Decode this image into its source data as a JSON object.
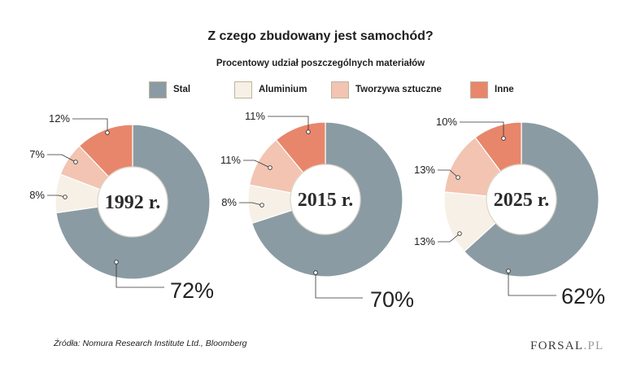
{
  "chart_data": {
    "type": "pie",
    "title": "Z czego zbudowany jest samochód?",
    "subtitle": "Procentowy udział poszczególnych materiałów",
    "categories": [
      "Stal",
      "Aluminium",
      "Tworzywa sztuczne",
      "Inne"
    ],
    "colors": [
      "#8A9BA3",
      "#F6F0E6",
      "#F2C4B1",
      "#E8866B"
    ],
    "legend": "top",
    "series": [
      {
        "name": "1992 r.",
        "values": [
          72,
          8,
          7,
          12
        ],
        "labels": [
          "72%",
          "8%",
          "7%",
          "12%"
        ]
      },
      {
        "name": "2015 r.",
        "values": [
          70,
          8,
          11,
          11
        ],
        "labels": [
          "70%",
          "8%",
          "11%",
          "11%"
        ]
      },
      {
        "name": "2025 r.",
        "values": [
          62,
          13,
          13,
          10
        ],
        "labels": [
          "62%",
          "13%",
          "13%",
          "10%"
        ]
      }
    ]
  },
  "source": "Źródła: Nomura Research Institute Ltd., Bloomberg",
  "logo": {
    "name": "FORSAL",
    "suffix": ".PL"
  }
}
